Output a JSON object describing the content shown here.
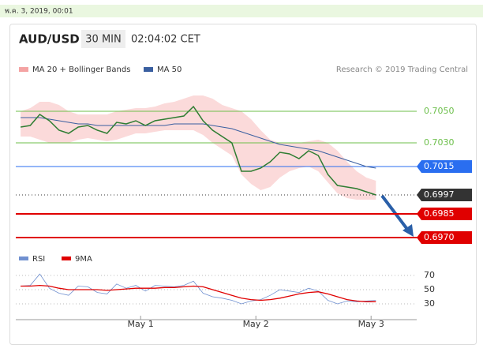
{
  "date": "พ.ค. 3, 2019, 00:01",
  "chart_data": {
    "type": "line",
    "title": "AUD/USD",
    "interval": "30 MIN",
    "time": "02:04:02 CET",
    "credit": "Research © 2019 Trading Central",
    "x": [
      -25,
      -23,
      -21,
      -19,
      -17,
      -15,
      -13,
      -11,
      -9,
      -7,
      -5,
      -3,
      -1,
      1,
      3,
      5,
      7,
      9,
      11,
      13,
      15,
      17,
      19,
      21,
      23,
      25,
      27,
      29,
      31,
      33,
      35,
      37,
      39,
      41,
      43,
      45,
      47,
      49
    ],
    "xlim": [
      -26,
      57.5
    ],
    "xticks": [
      {
        "value": 0,
        "label": "May 1"
      },
      {
        "value": 24,
        "label": "May 2"
      },
      {
        "value": 48,
        "label": "May 3"
      }
    ],
    "ylim": [
      0.6965,
      0.7071
    ],
    "price": {
      "color": "#2e7d32",
      "values": [
        0.704,
        0.7041,
        0.7048,
        0.7044,
        0.7038,
        0.7036,
        0.704,
        0.7041,
        0.7038,
        0.7036,
        0.7043,
        0.7042,
        0.7044,
        0.7041,
        0.7044,
        0.7045,
        0.7046,
        0.7047,
        0.7053,
        0.7044,
        0.7038,
        0.7034,
        0.703,
        0.7012,
        0.7012,
        0.7014,
        0.7018,
        0.7024,
        0.7023,
        0.702,
        0.7025,
        0.7022,
        0.701,
        0.7003,
        0.7002,
        0.7001,
        0.6999,
        0.6997
      ]
    },
    "series": [
      {
        "name": "MA 20 + Bollinger Bands",
        "color": "#f4a3a3",
        "upper": [
          0.705,
          0.7052,
          0.7056,
          0.7056,
          0.7054,
          0.705,
          0.7048,
          0.7048,
          0.7048,
          0.7048,
          0.705,
          0.7051,
          0.7052,
          0.7052,
          0.7053,
          0.7055,
          0.7056,
          0.7058,
          0.706,
          0.706,
          0.7058,
          0.7054,
          0.7052,
          0.705,
          0.7045,
          0.7038,
          0.7032,
          0.703,
          0.703,
          0.703,
          0.7031,
          0.7032,
          0.703,
          0.7025,
          0.7018,
          0.7012,
          0.7008,
          0.7006
        ],
        "lower": [
          0.7034,
          0.7034,
          0.7032,
          0.703,
          0.703,
          0.703,
          0.7032,
          0.7033,
          0.7032,
          0.7031,
          0.7032,
          0.7034,
          0.7036,
          0.7036,
          0.7037,
          0.7038,
          0.7038,
          0.7038,
          0.7038,
          0.7035,
          0.703,
          0.7026,
          0.7022,
          0.701,
          0.7004,
          0.7,
          0.7002,
          0.7008,
          0.7012,
          0.7014,
          0.7015,
          0.7012,
          0.7005,
          0.6998,
          0.6995,
          0.6994,
          0.6994,
          0.6994
        ]
      },
      {
        "name": "MA 50",
        "color": "#3a5fa0",
        "values": [
          0.7046,
          0.7046,
          0.7046,
          0.7045,
          0.7044,
          0.7043,
          0.7042,
          0.7042,
          0.7041,
          0.7041,
          0.7041,
          0.7041,
          0.7041,
          0.7041,
          0.7041,
          0.7041,
          0.7042,
          0.7042,
          0.7042,
          0.7042,
          0.7041,
          0.704,
          0.7039,
          0.7037,
          0.7035,
          0.7033,
          0.7031,
          0.7029,
          0.7028,
          0.7027,
          0.7026,
          0.7025,
          0.7023,
          0.7021,
          0.7019,
          0.7017,
          0.7015,
          0.7014
        ]
      }
    ],
    "levels": [
      {
        "value": 0.705,
        "label": "0.7050",
        "color": "#6cbf4a",
        "style": "line-text"
      },
      {
        "value": 0.703,
        "label": "0.7030",
        "color": "#6cbf4a",
        "style": "line-text"
      },
      {
        "value": 0.7015,
        "label": "0.7015",
        "color": "#2a6ef0",
        "style": "line-box"
      },
      {
        "value": 0.6997,
        "label": "0.6997",
        "color": "#333333",
        "style": "dotted-box"
      },
      {
        "value": 0.6985,
        "label": "0.6985",
        "color": "#e00000",
        "style": "thick-box"
      },
      {
        "value": 0.697,
        "label": "0.6970",
        "color": "#e00000",
        "style": "thick-box"
      }
    ],
    "rsi": {
      "ylim": [
        20,
        80
      ],
      "yticks": [
        30,
        50,
        70
      ],
      "series": [
        {
          "name": "RSI",
          "color": "#7090d0",
          "values": [
            55,
            56,
            72,
            52,
            45,
            42,
            55,
            54,
            46,
            44,
            58,
            52,
            56,
            48,
            56,
            55,
            54,
            56,
            62,
            45,
            40,
            38,
            35,
            30,
            34,
            36,
            42,
            50,
            48,
            46,
            52,
            48,
            35,
            30,
            34,
            33,
            34,
            35
          ]
        },
        {
          "name": "9MA",
          "color": "#e00000",
          "values": [
            55,
            55,
            56,
            55,
            52,
            50,
            50,
            50,
            50,
            49,
            50,
            51,
            52,
            52,
            52,
            53,
            53,
            54,
            55,
            54,
            50,
            46,
            42,
            38,
            36,
            35,
            36,
            38,
            41,
            44,
            46,
            47,
            44,
            40,
            36,
            34,
            33,
            33
          ]
        }
      ]
    }
  }
}
